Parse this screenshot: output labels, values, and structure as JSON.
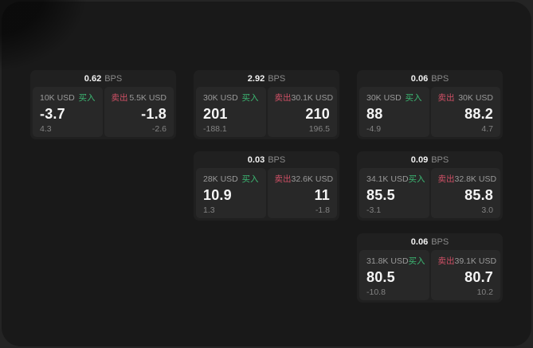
{
  "page": {
    "background_outer": "#242424",
    "background_panel": "#191919"
  },
  "labels": {
    "bps_unit": "BPS",
    "buy": "买入",
    "sell": "卖出"
  },
  "colors": {
    "buy_accent": "#3cb873",
    "sell_accent": "#d05066",
    "card_bg": "#202020",
    "tile_bg": "#282828",
    "text_primary": "#f5f5f5",
    "text_secondary": "#8a8a8a"
  },
  "cards": [
    {
      "bps": "0.62",
      "buy": {
        "amount": "10K USD",
        "price": "-3.7",
        "delta": "4.3"
      },
      "sell": {
        "amount": "5.5K USD",
        "price": "-1.8",
        "delta": "-2.6"
      }
    },
    {
      "bps": "2.92",
      "buy": {
        "amount": "30K USD",
        "price": "201",
        "delta": "-188.1"
      },
      "sell": {
        "amount": "30.1K USD",
        "price": "210",
        "delta": "196.5"
      }
    },
    {
      "bps": "0.06",
      "buy": {
        "amount": "30K USD",
        "price": "88",
        "delta": "-4.9"
      },
      "sell": {
        "amount": "30K USD",
        "price": "88.2",
        "delta": "4.7"
      }
    },
    {
      "bps": "0.03",
      "buy": {
        "amount": "28K USD",
        "price": "10.9",
        "delta": "1.3"
      },
      "sell": {
        "amount": "32.6K USD",
        "price": "11",
        "delta": "-1.8"
      }
    },
    {
      "bps": "0.09",
      "buy": {
        "amount": "34.1K USD",
        "price": "85.5",
        "delta": "-3.1"
      },
      "sell": {
        "amount": "32.8K USD",
        "price": "85.8",
        "delta": "3.0"
      }
    },
    {
      "bps": "0.06",
      "buy": {
        "amount": "31.8K USD",
        "price": "80.5",
        "delta": "-10.8"
      },
      "sell": {
        "amount": "39.1K USD",
        "price": "80.7",
        "delta": "10.2"
      }
    }
  ]
}
